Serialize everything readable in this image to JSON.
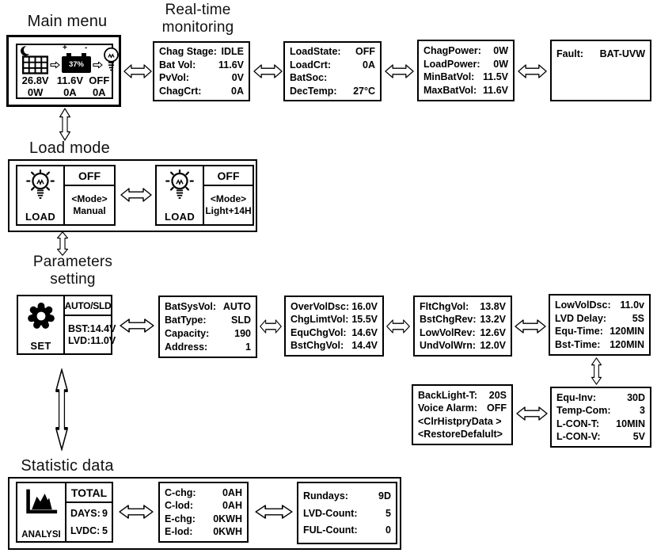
{
  "headings": {
    "main_menu": "Main menu",
    "realtime_1": "Real-time",
    "realtime_2": "monitoring",
    "load_mode": "Load mode",
    "parameters_1": "Parameters",
    "parameters_2": "setting",
    "statistic": "Statistic data"
  },
  "main_menu": {
    "battery_soc": "37%",
    "battery_plus": "+",
    "battery_minus": "-",
    "pv_voltage": "26.8V",
    "bat_voltage": "11.6V",
    "load_state": "OFF",
    "pv_power": "0W",
    "bat_current": "0A",
    "load_current": "0A"
  },
  "realtime": {
    "screens": [
      {
        "rows": [
          {
            "label": "Chag Stage:",
            "value": "IDLE"
          },
          {
            "label": "Bat Vol:",
            "value": "11.6V"
          },
          {
            "label": "PvVol:",
            "value": "0V"
          },
          {
            "label": "ChagCrt:",
            "value": "0A"
          }
        ]
      },
      {
        "rows": [
          {
            "label": "LoadState:",
            "value": "OFF"
          },
          {
            "label": "LoadCrt:",
            "value": "0A"
          },
          {
            "label": "BatSoc:",
            "value": ""
          },
          {
            "label": "DecTemp:",
            "value": "27°C"
          }
        ]
      },
      {
        "rows": [
          {
            "label": "ChagPower:",
            "value": "0W"
          },
          {
            "label": "LoadPower:",
            "value": "0W"
          },
          {
            "label": "MinBatVol:",
            "value": "11.5V"
          },
          {
            "label": "MaxBatVol:",
            "value": "11.6V"
          }
        ]
      },
      {
        "rows": [
          {
            "label": "Fault:",
            "value": "BAT-UVW"
          }
        ]
      }
    ]
  },
  "load_mode": {
    "screens": [
      {
        "device_label": "LOAD",
        "state": "OFF",
        "mode_tag": "<Mode>",
        "mode_value": "Manual"
      },
      {
        "device_label": "LOAD",
        "state": "OFF",
        "mode_tag": "<Mode>",
        "mode_value": "Light+14H"
      }
    ]
  },
  "parameters": {
    "set_screen": {
      "device_label": "SET",
      "header": "AUTO/SLD",
      "line1": "BST:14.4V",
      "line2": "LVD:11.0V"
    },
    "screens": [
      {
        "rows": [
          {
            "label": "BatSysVol:",
            "value": "AUTO"
          },
          {
            "label": "BatType:",
            "value": "SLD"
          },
          {
            "label": "Capacity:",
            "value": "190"
          },
          {
            "label": "Address:",
            "value": "1"
          }
        ]
      },
      {
        "rows": [
          {
            "label": "OverVolDsc:",
            "value": "16.0V"
          },
          {
            "label": "ChgLimtVol:",
            "value": "15.5V"
          },
          {
            "label": "EquChgVol:",
            "value": "14.6V"
          },
          {
            "label": "BstChgVol:",
            "value": "14.4V"
          }
        ]
      },
      {
        "rows": [
          {
            "label": "FltChgVol:",
            "value": "13.8V"
          },
          {
            "label": "BstChgRev:",
            "value": "13.2V"
          },
          {
            "label": "LowVolRev:",
            "value": "12.6V"
          },
          {
            "label": "UndVolWrn:",
            "value": "12.0V"
          }
        ]
      },
      {
        "rows": [
          {
            "label": "LowVolDsc:",
            "value": "11.0v"
          },
          {
            "label": "LVD Delay:",
            "value": "5S"
          },
          {
            "label": "Equ-Time:",
            "value": "120MIN"
          },
          {
            "label": "Bst-Time:",
            "value": "120MIN"
          }
        ]
      },
      {
        "rows": [
          {
            "label": "BackLight-T:",
            "value": "20S"
          },
          {
            "label": "Voice Alarm:",
            "value": "OFF"
          },
          {
            "label": "<ClrHistpryData >",
            "value": ""
          },
          {
            "label": "<RestoreDefalult>",
            "value": ""
          }
        ]
      },
      {
        "rows": [
          {
            "label": "Equ-Inv:",
            "value": "30D"
          },
          {
            "label": "Temp-Com:",
            "value": "3"
          },
          {
            "label": "L-CON-T:",
            "value": "10MIN"
          },
          {
            "label": "L-CON-V:",
            "value": "5V"
          }
        ]
      }
    ]
  },
  "statistic": {
    "analysis_screen": {
      "device_label": "ANALYSI",
      "header": "TOTAL",
      "rows": [
        {
          "label": "DAYS:",
          "value": "9"
        },
        {
          "label": "LVDC:",
          "value": "5"
        }
      ]
    },
    "screens": [
      {
        "rows": [
          {
            "label": "C-chg:",
            "value": "0AH"
          },
          {
            "label": "C-lod:",
            "value": "0AH"
          },
          {
            "label": "E-chg:",
            "value": "0KWH"
          },
          {
            "label": "E-lod:",
            "value": "0KWH"
          }
        ]
      },
      {
        "rows": [
          {
            "label": "Rundays:",
            "value": "9D"
          },
          {
            "label": "LVD-Count:",
            "value": "5"
          },
          {
            "label": "FUL-Count:",
            "value": "0"
          }
        ]
      }
    ]
  },
  "colors": {
    "ink": "#000000",
    "background": "#ffffff"
  }
}
